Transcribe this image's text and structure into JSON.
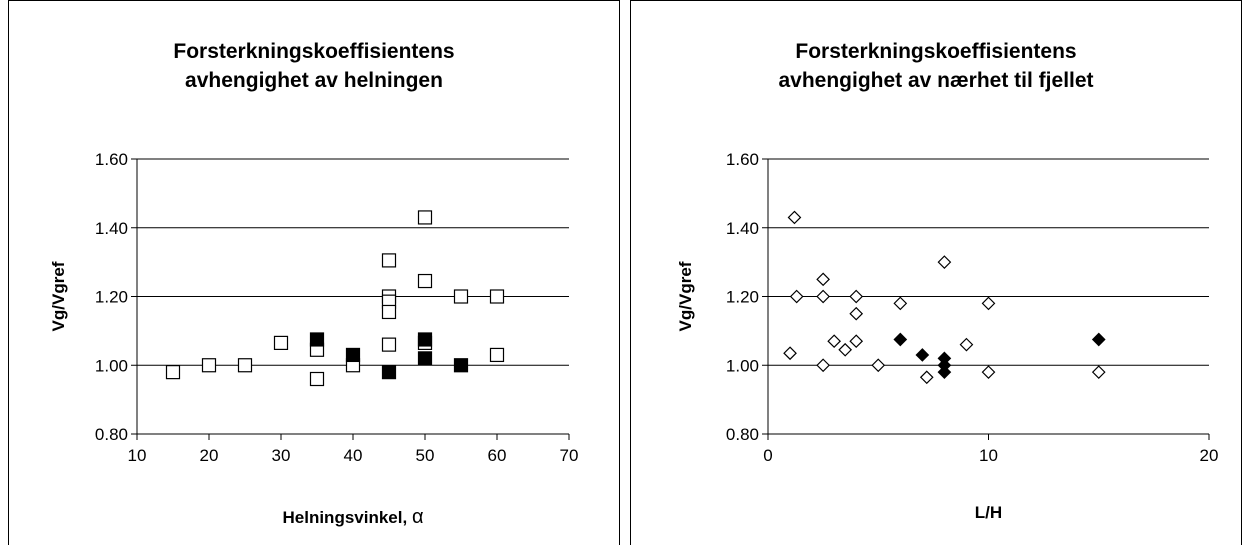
{
  "chart_data": [
    {
      "type": "scatter",
      "title_lines": [
        "Forsterkningskoeffisientens",
        "avhengighet av helningen"
      ],
      "xlabel": "Helningsvinkel, ",
      "xlabel_symbol": "α",
      "ylabel": "Vg/Vgref",
      "xlim": [
        10,
        70
      ],
      "ylim": [
        0.8,
        1.6
      ],
      "xticks": [
        "10",
        "20",
        "30",
        "40",
        "50",
        "60",
        "70"
      ],
      "yticks": [
        "0.80",
        "1.00",
        "1.20",
        "1.40",
        "1.60"
      ],
      "grid": "horizontal",
      "marker": "square",
      "series": [
        {
          "marker_fill": "none",
          "points": [
            [
              15,
              0.98
            ],
            [
              20,
              1.0
            ],
            [
              25,
              1.0
            ],
            [
              30,
              1.065
            ],
            [
              35,
              1.045
            ],
            [
              35,
              0.96
            ],
            [
              40,
              1.0
            ],
            [
              45,
              1.305
            ],
            [
              45,
              1.2
            ],
            [
              45,
              1.185
            ],
            [
              45,
              1.155
            ],
            [
              45,
              1.06
            ],
            [
              50,
              1.43
            ],
            [
              50,
              1.245
            ],
            [
              50,
              1.065
            ],
            [
              55,
              1.2
            ],
            [
              60,
              1.2
            ],
            [
              60,
              1.03
            ]
          ]
        },
        {
          "marker_fill": "#000000",
          "points": [
            [
              35,
              1.075
            ],
            [
              40,
              1.03
            ],
            [
              45,
              0.98
            ],
            [
              50,
              1.075
            ],
            [
              50,
              1.02
            ],
            [
              55,
              1.0
            ]
          ]
        }
      ]
    },
    {
      "type": "scatter",
      "title_lines": [
        "Forsterkningskoeffisientens",
        "avhengighet av nærhet til fjellet"
      ],
      "xlabel": "L/H",
      "ylabel": "Vg/Vgref",
      "xlim": [
        0,
        20
      ],
      "ylim": [
        0.8,
        1.6
      ],
      "xticks": [
        "0",
        "10",
        "20"
      ],
      "yticks": [
        "0.80",
        "1.00",
        "1.20",
        "1.40",
        "1.60"
      ],
      "grid": "horizontal",
      "marker": "diamond",
      "series": [
        {
          "marker_fill": "none",
          "points": [
            [
              1.2,
              1.43
            ],
            [
              1.3,
              1.2
            ],
            [
              1.0,
              1.035
            ],
            [
              2.5,
              1.25
            ],
            [
              2.5,
              1.2
            ],
            [
              2.5,
              1.0
            ],
            [
              3,
              1.07
            ],
            [
              3.5,
              1.045
            ],
            [
              4,
              1.2
            ],
            [
              4,
              1.15
            ],
            [
              4,
              1.07
            ],
            [
              5,
              1.0
            ],
            [
              6,
              1.18
            ],
            [
              7.2,
              0.965
            ],
            [
              8,
              1.3
            ],
            [
              9,
              1.06
            ],
            [
              10,
              1.18
            ],
            [
              10,
              0.98
            ],
            [
              15,
              0.98
            ]
          ]
        },
        {
          "marker_fill": "#000000",
          "points": [
            [
              6,
              1.075
            ],
            [
              7,
              1.03
            ],
            [
              8,
              1.02
            ],
            [
              8,
              1.0
            ],
            [
              8,
              0.98
            ],
            [
              15,
              1.075
            ]
          ]
        }
      ]
    }
  ]
}
